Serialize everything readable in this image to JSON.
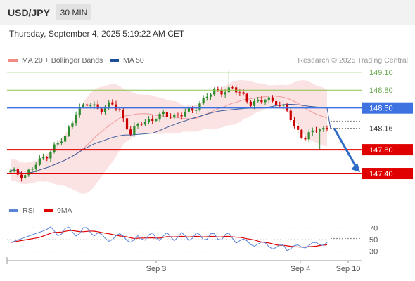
{
  "header": {
    "symbol": "USD/JPY",
    "timeframe": "30 MIN",
    "datetime": "Thursday, September 4, 2025 5:19:22 AM CET"
  },
  "legend": {
    "bb_label": "MA 20 + Bollinger Bands",
    "bb_color": "#f28b82",
    "ma50_label": "MA 50",
    "ma50_color": "#1f4e99",
    "credit": "Research © 2025 Trading Central"
  },
  "colors": {
    "bull": "#2e8b2e",
    "bear": "#cc0000",
    "bands_fill": "#fadada",
    "ma20": "#ef9a9a",
    "ma50": "#3b5d9c",
    "resistance": "#8bc34a",
    "pivot": "#3d72e0",
    "support": "#e00000",
    "arrow": "#2f6bc4",
    "rsi": "#5b84d6",
    "rsi_ma": "#e00000"
  },
  "chart_data": [
    {
      "type": "candlestick",
      "title": "",
      "ylim": [
        147.2,
        149.18
      ],
      "current_price": "148.16",
      "levels": [
        {
          "value": 149.1,
          "label": "149.10",
          "kind": "resistance"
        },
        {
          "value": 148.8,
          "label": "148.80",
          "kind": "resistance"
        },
        {
          "value": 148.5,
          "label": "148.50",
          "kind": "pivot"
        },
        {
          "value": 147.8,
          "label": "147.80",
          "kind": "support"
        },
        {
          "value": 147.4,
          "label": "147.40",
          "kind": "support"
        }
      ],
      "x_ticks": [
        "Sep 3",
        "Sep 4",
        "Sep 10"
      ],
      "forecast": {
        "from": 148.16,
        "to": 147.4
      }
    },
    {
      "type": "line",
      "title": "RSI",
      "series_names": [
        "RSI",
        "9MA"
      ],
      "ylim": [
        20,
        80
      ],
      "y_ticks": [
        "70",
        "50",
        "30"
      ],
      "y_tick_values": [
        70,
        50,
        30
      ]
    }
  ]
}
